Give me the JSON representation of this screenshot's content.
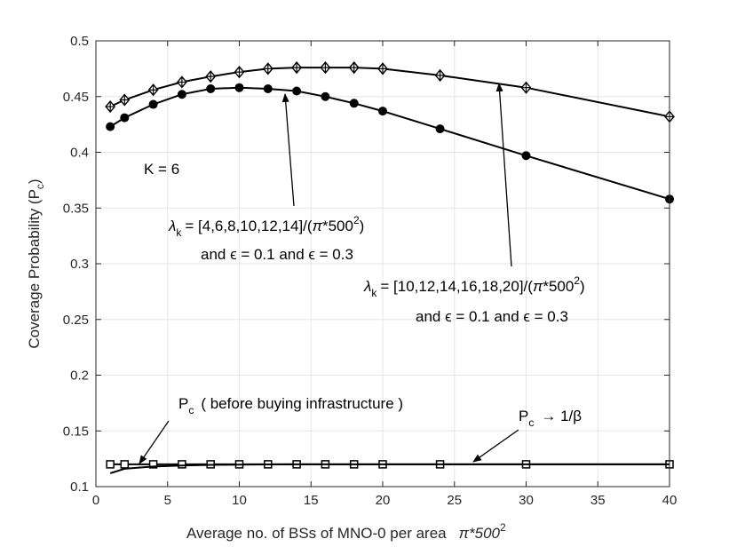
{
  "chart_data": {
    "type": "line",
    "title": "",
    "xlabel": "Average no. of BSs of MNO-0 per area",
    "xlabel_unit": "π*500",
    "xlabel_unit_sup": "2",
    "ylabel": "Coverage Probability (P",
    "ylabel_sub": "c",
    "ylabel_close": ")",
    "xlim": [
      0,
      40
    ],
    "ylim": [
      0.1,
      0.5
    ],
    "x_ticks": [
      0,
      5,
      10,
      15,
      20,
      25,
      30,
      35,
      40
    ],
    "y_ticks": [
      0.1,
      0.15,
      0.2,
      0.25,
      0.3,
      0.35,
      0.4,
      0.45,
      0.5
    ],
    "grid": true,
    "x": [
      1,
      2,
      4,
      6,
      8,
      10,
      12,
      14,
      16,
      18,
      20,
      24,
      30,
      40
    ],
    "series": [
      {
        "marker": "diamond-plus",
        "values": [
          0.441,
          0.447,
          0.456,
          0.463,
          0.468,
          0.472,
          0.475,
          0.476,
          0.476,
          0.476,
          0.475,
          0.469,
          0.458,
          0.432
        ]
      },
      {
        "marker": "circle",
        "values": [
          0.423,
          0.431,
          0.443,
          0.452,
          0.457,
          0.458,
          0.457,
          0.455,
          0.45,
          0.444,
          0.437,
          0.421,
          0.397,
          0.358
        ]
      },
      {
        "marker": "square",
        "values": [
          0.12,
          0.12,
          0.12,
          0.12,
          0.12,
          0.12,
          0.12,
          0.12,
          0.12,
          0.12,
          0.12,
          0.12,
          0.12,
          0.12
        ]
      },
      {
        "marker": "none",
        "x": [
          1,
          2,
          4,
          6,
          8,
          10,
          12,
          14,
          16,
          18,
          20,
          24,
          30,
          40
        ],
        "values": [
          0.112,
          0.116,
          0.118,
          0.119,
          0.1195,
          0.1198,
          0.1199,
          0.12,
          0.12,
          0.12,
          0.12,
          0.12,
          0.12,
          0.12
        ]
      }
    ],
    "annotations": {
      "k_label": "K = 6",
      "group1_line1_sym": "λ",
      "group1_line1_sub": "k",
      "group1_line1_text": "= [4,6,8,10,12,14]/(",
      "group1_line1_pi": "π",
      "group1_line1_tail": "*500",
      "group1_line1_sup": "2",
      "group1_line1_close": ")",
      "group1_line2": "and ϵ = 0.1 and ϵ = 0.3",
      "group2_line1_sym": "λ",
      "group2_line1_sub": "k",
      "group2_line1_text": "= [10,12,14,16,18,20]/(",
      "group2_line1_pi": "π",
      "group2_line1_tail": "*500",
      "group2_line1_sup": "2",
      "group2_line1_close": ")",
      "group2_line2": "and ϵ = 0.1 and ϵ = 0.3",
      "before_p": "P",
      "before_sub": "c",
      "before_text": "( before buying infrastructure )",
      "limit_p": "P",
      "limit_sub": "c",
      "limit_text": "→ 1/β"
    }
  }
}
